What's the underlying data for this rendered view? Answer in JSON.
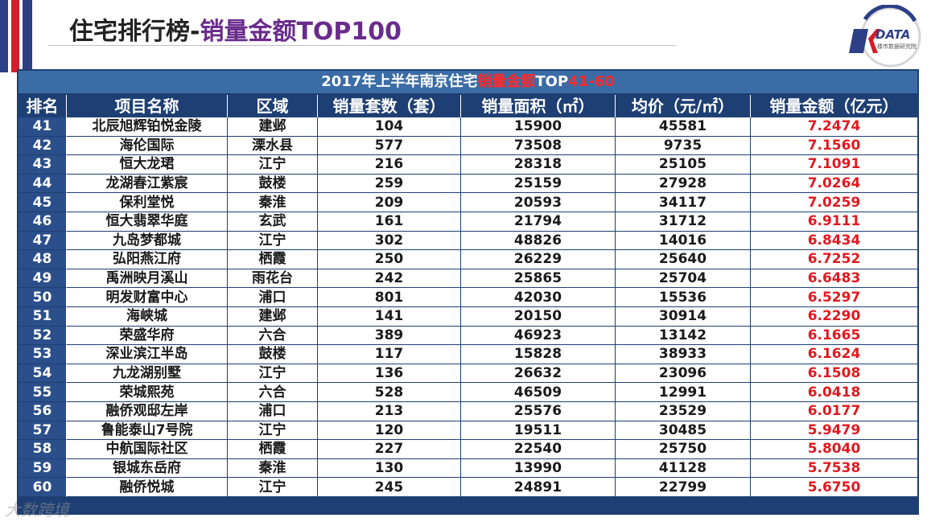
{
  "title": {
    "prefix": "住宅排行榜-",
    "highlight": "销量金额TOP100"
  },
  "logo": {
    "text": "DATA",
    "sub": "楼市数据研究院"
  },
  "table": {
    "caption_prefix": "2017年上半年南京住宅",
    "caption_red1": "销量金额",
    "caption_mid": "TOP",
    "caption_red2": "41-60",
    "headers": [
      "排名",
      "项目名称",
      "区域",
      "销量套数（套）",
      "销量面积（㎡）",
      "均价（元/㎡）",
      "销量金额（亿元）"
    ],
    "rows": [
      [
        "41",
        "北辰旭辉铂悦金陵",
        "建邺",
        "104",
        "15900",
        "45581",
        "7.2474"
      ],
      [
        "42",
        "海伦国际",
        "溧水县",
        "577",
        "73508",
        "9735",
        "7.1560"
      ],
      [
        "43",
        "恒大龙珺",
        "江宁",
        "216",
        "28318",
        "25105",
        "7.1091"
      ],
      [
        "44",
        "龙湖春江紫宸",
        "鼓楼",
        "259",
        "25159",
        "27928",
        "7.0264"
      ],
      [
        "45",
        "保利堂悦",
        "秦淮",
        "209",
        "20593",
        "34117",
        "7.0259"
      ],
      [
        "46",
        "恒大翡翠华庭",
        "玄武",
        "161",
        "21794",
        "31712",
        "6.9111"
      ],
      [
        "47",
        "九岛梦都城",
        "江宁",
        "302",
        "48826",
        "14016",
        "6.8434"
      ],
      [
        "48",
        "弘阳燕江府",
        "栖霞",
        "250",
        "26229",
        "25640",
        "6.7252"
      ],
      [
        "49",
        "禹洲映月溪山",
        "雨花台",
        "242",
        "25865",
        "25704",
        "6.6483"
      ],
      [
        "50",
        "明发财富中心",
        "浦口",
        "801",
        "42030",
        "15536",
        "6.5297"
      ],
      [
        "51",
        "海峡城",
        "建邺",
        "141",
        "20150",
        "30914",
        "6.2290"
      ],
      [
        "52",
        "荣盛华府",
        "六合",
        "389",
        "46923",
        "13142",
        "6.1665"
      ],
      [
        "53",
        "深业滨江半岛",
        "鼓楼",
        "117",
        "15828",
        "38933",
        "6.1624"
      ],
      [
        "54",
        "九龙湖别墅",
        "江宁",
        "136",
        "26632",
        "23096",
        "6.1508"
      ],
      [
        "55",
        "荣城熙苑",
        "六合",
        "528",
        "46509",
        "12991",
        "6.0418"
      ],
      [
        "56",
        "融侨观邸左岸",
        "浦口",
        "213",
        "25576",
        "23529",
        "6.0177"
      ],
      [
        "57",
        "鲁能泰山7号院",
        "江宁",
        "120",
        "19511",
        "30485",
        "5.9479"
      ],
      [
        "58",
        "中航国际社区",
        "栖霞",
        "227",
        "22540",
        "25750",
        "5.8040"
      ],
      [
        "59",
        "银城东岳府",
        "秦淮",
        "130",
        "13990",
        "41128",
        "5.7538"
      ],
      [
        "60",
        "融侨悦城",
        "江宁",
        "245",
        "24891",
        "22799",
        "5.6750"
      ]
    ]
  },
  "watermark": "大数跨境",
  "colors": {
    "navy": "#1e3f73",
    "accent_purple": "#6a2c8c",
    "amount_red": "#e0191f"
  }
}
